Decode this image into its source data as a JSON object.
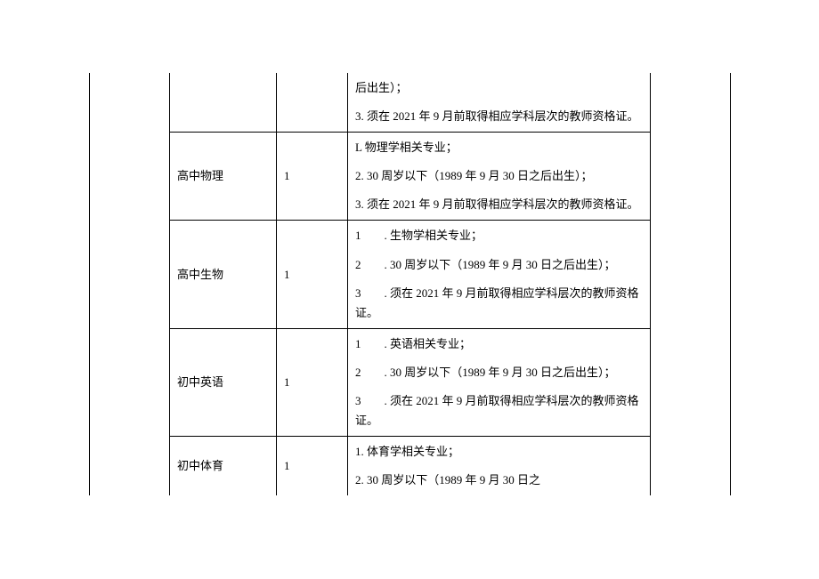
{
  "rows": [
    {
      "subject": "",
      "count": "",
      "req1": "后出生）；",
      "req2": "3. 须在 2021 年 9 月前取得相应学科层次的教师资格证。"
    },
    {
      "subject": "高中物理",
      "count": "1",
      "req1": "L 物理学相关专业；",
      "req2": "2. 30 周岁以下（1989 年 9 月 30 日之后出生）；",
      "req3": "3. 须在 2021 年 9 月前取得相应学科层次的教师资格证。"
    },
    {
      "subject": "高中生物",
      "count": "1",
      "req1": "1　　. 生物学相关专业；",
      "req2": "2　　. 30 周岁以下（1989 年 9 月 30 日之后出生）；",
      "req3": "3　　. 须在 2021 年 9 月前取得相应学科层次的教师资格证。"
    },
    {
      "subject": "初中英语",
      "count": "1",
      "req1": "1　　. 英语相关专业；",
      "req2": "2　　. 30 周岁以下（1989 年 9 月 30 日之后出生）；",
      "req3": "3　　. 须在 2021 年 9 月前取得相应学科层次的教师资格证。"
    },
    {
      "subject": "初中体育",
      "count": "1",
      "req1": "1. 体育学相关专业；",
      "req2": "2. 30 周岁以下（1989 年 9 月 30 日之"
    }
  ]
}
